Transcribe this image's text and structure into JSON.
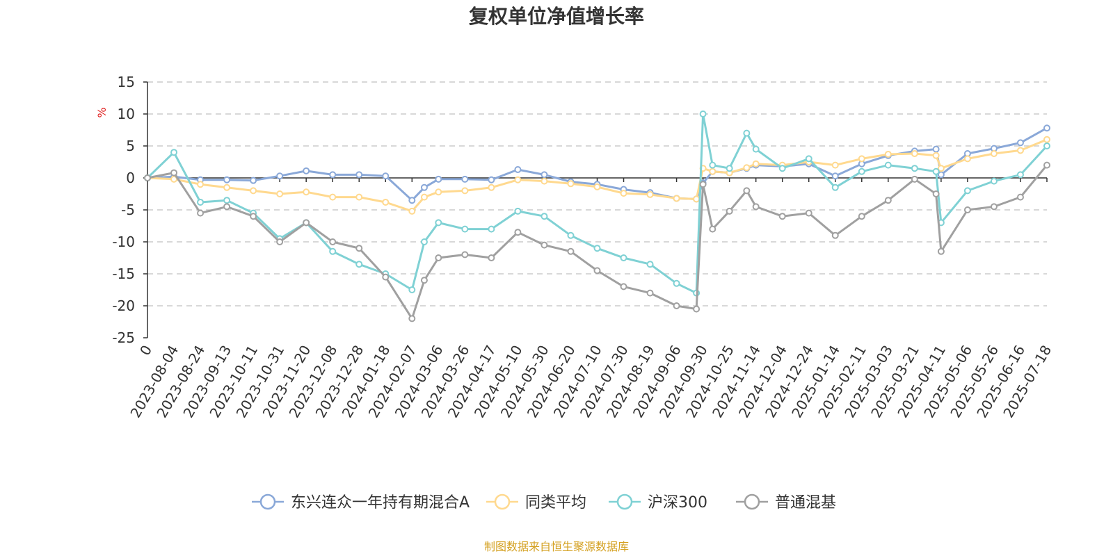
{
  "chart_data": {
    "type": "line",
    "title": "复权单位净值增长率",
    "ylabel": "%",
    "ylim": [
      -25,
      15
    ],
    "yticks": [
      15,
      10,
      5,
      0,
      -5,
      -10,
      -15,
      -20,
      -25
    ],
    "grid": true,
    "legend_position": "bottom",
    "x_tick_labels": [
      "0",
      "2023-08-04",
      "2023-08-24",
      "2023-09-13",
      "2023-10-11",
      "2023-10-31",
      "2023-11-20",
      "2023-12-08",
      "2023-12-28",
      "2024-01-18",
      "2024-02-07",
      "2024-03-06",
      "2024-03-26",
      "2024-04-17",
      "2024-05-10",
      "2024-05-30",
      "2024-06-20",
      "2024-07-10",
      "2024-07-30",
      "2024-08-19",
      "2024-09-06",
      "2024-09-30",
      "2024-10-25",
      "2024-11-14",
      "2024-12-04",
      "2024-12-24",
      "2025-01-14",
      "2025-02-11",
      "2025-03-03",
      "2025-03-21",
      "2025-04-11",
      "2025-05-06",
      "2025-05-26",
      "2025-06-16",
      "2025-07-18"
    ],
    "x": [
      "0",
      "2023-08-04",
      "2023-08-24",
      "2023-09-13",
      "2023-10-11",
      "2023-10-31",
      "2023-11-20",
      "2023-12-08",
      "2023-12-28",
      "2024-01-18",
      "2024-02-07",
      "2024-02-20",
      "2024-03-06",
      "2024-03-26",
      "2024-04-17",
      "2024-05-10",
      "2024-05-30",
      "2024-06-20",
      "2024-07-10",
      "2024-07-30",
      "2024-08-19",
      "2024-09-06",
      "2024-09-24",
      "2024-09-30",
      "2024-10-09",
      "2024-10-25",
      "2024-11-07",
      "2024-11-14",
      "2024-12-04",
      "2024-12-24",
      "2025-01-14",
      "2025-02-11",
      "2025-03-03",
      "2025-03-21",
      "2025-04-07",
      "2025-04-11",
      "2025-05-06",
      "2025-05-26",
      "2025-06-16",
      "2025-07-18"
    ],
    "series": [
      {
        "name": "东兴连众一年持有期混合A",
        "color": "#8aa8d8",
        "values": [
          0,
          0.2,
          -0.3,
          -0.3,
          -0.4,
          0.3,
          1.1,
          0.5,
          0.5,
          0.3,
          -3.5,
          -1.5,
          -0.2,
          -0.2,
          -0.3,
          1.3,
          0.5,
          -0.6,
          -1.0,
          -1.8,
          -2.3,
          -3.2,
          -3.3,
          -0.8,
          1.0,
          0.8,
          1.5,
          2.0,
          1.8,
          2.2,
          0.3,
          2.2,
          3.5,
          4.2,
          4.5,
          0.5,
          3.8,
          4.6,
          5.5,
          7.8
        ]
      },
      {
        "name": "同类平均",
        "color": "#ffd98f",
        "values": [
          0,
          -0.2,
          -1.0,
          -1.5,
          -2.0,
          -2.5,
          -2.2,
          -3.0,
          -3.0,
          -3.8,
          -5.2,
          -3.0,
          -2.2,
          -2.0,
          -1.5,
          -0.3,
          -0.5,
          -0.9,
          -1.4,
          -2.4,
          -2.6,
          -3.2,
          -3.3,
          1.5,
          1.0,
          0.8,
          1.6,
          2.2,
          2.0,
          2.5,
          2.0,
          3.0,
          3.7,
          3.8,
          3.5,
          1.5,
          3.0,
          3.8,
          4.3,
          6.0
        ]
      },
      {
        "name": "沪深300",
        "color": "#7fd1d4",
        "values": [
          0,
          4.0,
          -3.8,
          -3.5,
          -5.5,
          -9.5,
          -7.0,
          -11.5,
          -13.5,
          -15.0,
          -17.5,
          -10.0,
          -7.0,
          -8.0,
          -8.0,
          -5.2,
          -6.0,
          -9.0,
          -11.0,
          -12.5,
          -13.5,
          -16.5,
          -18.0,
          10.0,
          2.0,
          1.5,
          7.0,
          4.5,
          1.5,
          3.0,
          -1.5,
          1.0,
          2.0,
          1.5,
          1.0,
          -7.0,
          -2.0,
          -0.5,
          0.5,
          5.0
        ]
      },
      {
        "name": "普通混基",
        "color": "#a0a0a0",
        "values": [
          0,
          0.8,
          -5.5,
          -4.5,
          -6.0,
          -10.0,
          -7.0,
          -10.0,
          -11.0,
          -15.5,
          -22.0,
          -16.0,
          -12.5,
          -12.0,
          -12.5,
          -8.5,
          -10.5,
          -11.5,
          -14.5,
          -17.0,
          -18.0,
          -20.0,
          -20.5,
          -1.0,
          -8.0,
          -5.2,
          -2.0,
          -4.5,
          -6.0,
          -5.5,
          -9.0,
          -6.0,
          -3.5,
          -0.2,
          -2.5,
          -11.5,
          -5.0,
          -4.5,
          -3.0,
          2.0
        ]
      }
    ]
  },
  "footer": {
    "source": "制图数据来自恒生聚源数据库",
    "source_color": "#d4a020"
  },
  "colors": {
    "axis": "#333333",
    "grid": "#cccccc",
    "unit": "#e02020"
  }
}
